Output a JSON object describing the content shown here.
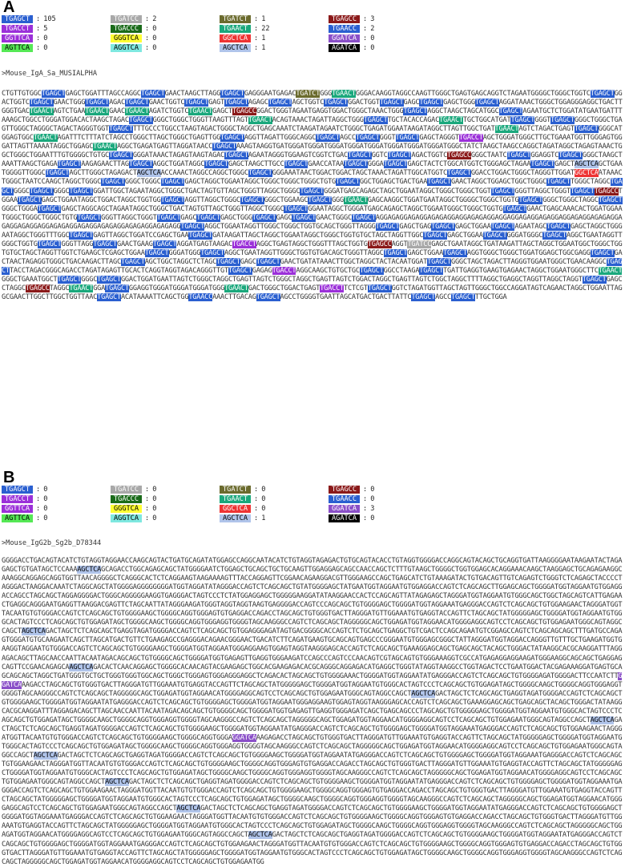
{
  "motif_styles": {
    "GAGCT": {
      "bg": "#2a5fd0",
      "fg": "#ffffff"
    },
    "GATCC": {
      "bg": "#a8a8a8",
      "fg": "#ffffff"
    },
    "GATCT": {
      "bg": "#6b6b2e",
      "fg": "#ffffff"
    },
    "TGAGCC": {
      "bg": "#8b1a1a",
      "fg": "#ffffff"
    },
    "TGAACT": {
      "bg": "#1aa87c",
      "fg": "#ffffff"
    },
    "GGTTCA": {
      "bg": "#9b30d9",
      "fg": "#ffffff"
    },
    "GGGTCA": {
      "bg": "#ffff33",
      "fg": "#000000"
    },
    "GGCTCA": {
      "bg": "#ee3333",
      "fg": "#ffffff"
    },
    "GGATCA": {
      "bg": "#8a4fc8",
      "fg": "#ffffff"
    },
    "AGTTCA": {
      "bg": "#55e855",
      "fg": "#000000"
    },
    "AGGTCA": {
      "bg": "#7fe8e0",
      "fg": "#000000"
    },
    "AGCTCA": {
      "bg": "#b0c4ea",
      "fg": "#000000"
    },
    "AGATCA": {
      "bg": "#000000",
      "fg": "#ffffff"
    },
    "TGACCT": {
      "bg": "#9b30d9",
      "fg": "#ffffff"
    },
    "TGACCC": {
      "bg": "#1a6b1a",
      "fg": "#ffffff"
    },
    "TGAACC": {
      "bg": "#2a5fd0",
      "fg": "#ffffff"
    },
    "TGAGCT": {
      "bg": "#2a5fd0",
      "fg": "#ffffff"
    }
  },
  "panel_a": {
    "letter": "A",
    "legend": [
      {
        "motif": "TGAGCT",
        "sep": ":",
        "count": "105",
        "bg": "#2a5fd0",
        "fg": "#ffffff"
      },
      {
        "motif": "TGATCC",
        "sep": ":",
        "count": "2",
        "bg": "#a8a8a8",
        "fg": "#ffffff"
      },
      {
        "motif": "TGATCT",
        "sep": ":",
        "count": "1",
        "bg": "#6b6b2e",
        "fg": "#ffffff"
      },
      {
        "motif": "TGAGCC",
        "sep": ":",
        "count": "3",
        "bg": "#8b1a1a",
        "fg": "#ffffff"
      },
      {
        "motif": "TGACCT",
        "sep": ":",
        "count": "5",
        "bg": "#9b30d9",
        "fg": "#ffffff"
      },
      {
        "motif": "TGACCC",
        "sep": ":",
        "count": "0",
        "bg": "#1a6b1a",
        "fg": "#ffffff"
      },
      {
        "motif": "TGAACT",
        "sep": ":",
        "count": "22",
        "bg": "#1aa87c",
        "fg": "#ffffff"
      },
      {
        "motif": "TGAACC",
        "sep": ":",
        "count": "2",
        "bg": "#2a5fd0",
        "fg": "#ffffff"
      },
      {
        "motif": "GGTTCA",
        "sep": ":",
        "count": "0",
        "bg": "#9b30d9",
        "fg": "#ffffff"
      },
      {
        "motif": "GGGTCA",
        "sep": ":",
        "count": "0",
        "bg": "#ffff33",
        "fg": "#000000"
      },
      {
        "motif": "GGCTCA",
        "sep": ":",
        "count": "1",
        "bg": "#ee3333",
        "fg": "#ffffff"
      },
      {
        "motif": "GGATCA",
        "sep": ":",
        "count": "0",
        "bg": "#8a4fc8",
        "fg": "#ffffff"
      },
      {
        "motif": "AGTTCA",
        "sep": ":",
        "count": "0",
        "bg": "#55e855",
        "fg": "#000000"
      },
      {
        "motif": "AGGTCA",
        "sep": ":",
        "count": "0",
        "bg": "#7fe8e0",
        "fg": "#000000"
      },
      {
        "motif": "AGCTCA",
        "sep": ":",
        "count": "1",
        "bg": "#b0c4ea",
        "fg": "#000000"
      },
      {
        "motif": "AGATCA",
        "sep": ":",
        "count": "0",
        "bg": "#000000",
        "fg": "#ffffff"
      }
    ],
    "title": ">Mouse_IgA_Sa_MUSIALPHA",
    "sequence": "CTGTTGTGGCTGAGCTGAGCTGGATTTAGCCAGGCTGAGCTGAACTAAGCTTAGGTGAGCTGAGGGAATGAGACTGATCTGGGTGAACTGGGACAAGGTAGGCCAAGTTGGGCTGAGTGAGCAGGTCTAGAATGGGGCTGGGCTGGTCTGAGCTGGACTGGTCTGAGCTGAACTGGGTGAGCTAGACTGAGCTGAACTGGTCTGAGCTGAGTTGAGCTAGAGCTGAGCTAGCTGGTCTGAGCTGGACTGGTTGAGCTGAGCTGAGCTGAGCTGGGTGAGCTAGGATAAACTGGGCTGGAGGGAGGCTGACTTGGGTGACTGAACTAGTCTGAATGAACTGAACTGAACTAGATCTGGTCTGAACTGAGCTTGAGCCGGACTGGGTAGAATGAGGTGGACTGGGCTAAACTGGGTGAGCTAGGCTAAGCTAGCATGGCTGAGCTAGAATGCTCTGGATATGAATGATTTAAAGCTGGCCTGGGATGGACACTAAGCTAGACTGAGCTGGGCTGGGCTGGGTTAAGTTTAGTTGAACTACAGTAAACTAGATTAGGCTGGGTGAGCTTGCTACACCAGACTGAACTTGCTGGCATGATTGAGCTGGGTTGAGCTGGGCTGGGCTGAGTTGGGCTAGGGCTAGACTAGGGTGGTTGAGCTTTTGCCCTGGCCTAAGTAGACTGGGCTAGGCTGAGCAAATCTAAGATAGAATCTGGGCTGAGATGGAATAAGATAGGCTTAGTTGGCTGATTGAACTAGTCTAGACTGAGTTGAGCTGGGCATGGAGTGGCTGAACTAGATTTCTTTATCTAGCCTGGGCTTAGCTGGGCTGAGTTGGTGAGCTAGGTTAGATTGGGCAGGCTGAGCTAGCCTGAGCTGGGTTGAGCTGAGCTAGGGTTGACCTAGCTGGGATGGGCTTGCTGAAATGGTTGGGAGTGGGATTAGTTAAAATAGGCTGGAGCTGAACTAGGCTGAGATGAGTTAGGATAACCTGAGCTAAAGTAAGGTGATGGGATGGGATGGGATGGGATGGGATGGGATGGGATGGGATGGGCTATCTAAGCTAAGCCAGGCTAGATAGGCTAGAGTAAACTGGCTGGGCTGGAATTTGTGGGGCTGTGCTGAGCTGGGATAAACTAGAGTAAGTAGACTGAGCTAGAATAGGGTGGAAGTCGGTCTGACTGAGCTGGTCTGAGCTAGACTGGTCTGAGCCGGGCTAATCTGAGCTGGAGGTCTGAGCTGGGCTAAGCTAAATTAAGCTGAGATGAGCTAAGAGAACTTAGTGAGCTAGGCTGGATAGGCTGAGCTGAGCTAAGCTTGCCTGAGCTGAACCATAATGAGCTGGGATGAGCTGAGCTACTCTGGCATGGTCTGGGAGCTAGAATGAGCTGAGCTAGCTCAGCTGAATGGGGTTGGGCTGAGCTAGCTTGGGCTAGAGACTAGCTCAACCAAACTAGGCCAGGCTGGGCTGAGCTGGGAAATAACTGGACTGGACTAGCTAAACTAGATTGGCATGGTCTGAGCTGGACCTGGACTGGGCTAGGGTTGGATGGCTCAATAAACTGGGCTAATCCAAGCTAGGCTGGGCTGAGCTGGGCTGGGCTGAGCTGAGCTAGGCTGGAATAGGCTGGGCTGGGCTGGGCTGTGTGAGCTGGCTGGAGCTGACTGAATGAGCTGAACTAGGCTGGAGCTGGCTGGGCTGAGCTTGGGCTAGGCTGAGCTGGGCTGAGCTGGGCTGAGCTGGATTGGCTAGAATAGGCTGGGCTGACTAGTGTTAGCTGGGTTAGGCTGGGCTGAGCTGGGATGAGCAGAGCTAGCTGGAATAGGCTGGGCTGGGCTGGTTGAGCTGGGTTAGGCTGGGTTGAGCTTGAGCCTGGAATGAGCTGAGCTGGAATAGGCTGGACTAGGCTGGTGGTGAGCTAGGTTAGGCTGGGCTGAGCTGGGCTGGAAGCTGAGCTGGGTGAACTGAGCAAGGCTGGATGAATAGGCTGGGGCTGGGCTGGTGTGAGCTGGGCTGGGCTAGGCTGAGCTGGGCTGGGATGAGCTGAGCTAGGCAGCTAGAATAGGCTGGGCTGACTAGTGTTAGCTGGGTTAGGCTGGGCTGAGCTGGAATAGGCTGGGATGAGCAGAGCTAGGCTGGAATGGGCTGGGCTGGTGTGAGCTGAACTGAGCAAACACTGGATGGAATGGGCTGGGCTGGGCTGTGTGAGCTGGGTTAGGCTGGGTTGAGCTGAGCTGAGCTGAGCTGGGTGAGCTGAGCTGAGCTGAACTGGGCTGAGCTAGGAGAGGAGAGGAGAGAGGAGGAGAGAGGAGGAGGAGAGGAGAGGAGGAGAGGAGAGAGGAGAGGAGAGGAGGAGAGAGGAGAGGAGAGAGGAGAGAGGAGAGAGGTGAGCTAGGCTGGAATAGGTTGGGCTGGGCTGGTGCAGCTGGGTTAGGGTGAGCTGAGCTGAGTGAGCTGAGCTGGAATGAGCTAGAATAGCTGAGCTGAGCTAGGCTGGGAATAGGCTGGGTTTGGCTGAGCTGAGTTAGGCTGGATCCGAGCTGAATGAGCTGATAAGATTAGCTAGGCTGGAATAGGCTGGGCTGGTGTGCTAGCTAGGTTGGCTGAGCTGAGCTGGAATGAGCTGGGATGGGCTGAGCTAGGCTGAATAGGTTGGGCTGGTGTGAGCTGGGTTAGGTGAGCTGAACTGAAGTGAGCTAGGATGAGTAAGACTGACCTAGGCTGAGTAGGCTGGGTTTAGCTGGTGTGAGCCAGGTTGATCCGAGCTGAATAGGCTGATAAGATTAGCTAGGCTGGAATGGCTGGGCTGGTGTGCTAGCTAGGTTGGTCTGAAGCTCGAGCTGGAATGAGCTGGGATGGGTGAGCTAGGCTGAATAGGTTGGGCTGGTGTGACAGCTGGGTTAGGCTGAGCTGAGCTGGAATGAGCTAGGTGGGCTGGGCTGGATGGAGCTGGCGAGGTGAGCTGACTAACTAGAGGTGGGCTGACAAGACTTAGCTGAGCTAGCTGGCTAGGCTCTAGCTGAGCTGAGCTGAGCTGAACTGATATAAACTTGGCTAGGCTACTACAATGGATTGAGCTGGGCTAGCTAGACTTAGGGTGGAATGGGCTGAACAAGGCTGAGCTTACCTAGACGGGCAGACCTAGATAGAGTTGCACTCAGGTAGGTAGACAGGGTTGTTGAGCTGAGAGTGACCTAGGCAAGCTGTGCTGCTGAGCTGGCCTAAGATGAGCTTGATTGAGGTGAAGTGAGAACTAGGCTGGAATGGGCTTCTGAACTGGGCTGAAATGGCTTGAGCTGGGCTGAGCTGGACTGGATGAATTAGTCTGGGCTAGGCTGAGTTAGTCTGGGCTAGGCTGAGTTAGTCTGGACTAGGCTGAGTTAGTCTGGCTAGGCTTTTAGGCTGAGGCTAGGTTAGGCTAGGTTGAGCTGAGCCTAGGCTGAGCCTAGGCTGAACTGGATGAGCTGGAGGTGGGATGGGATGGGATGGGTGAACTGACTGGGCTGGACTGAGTTGACCTTCTCGTTGAGCTGGTCTAGATGGTTAGCTAGTTGGGCTGGCCAGGATAGTCAGAACTAGGCTGGAATTAGGCGAACTTGGCTTGGCTGGTTAACTGAGCTACATAAAATTCAGCTGGTGAACCAAACTTGACAGTGAGCTAGCCTGGGGTGAATTAGCATGACTGACTTATTCTGAGCTAGCCTGAGCTTTGCTGGA"
  },
  "panel_b": {
    "letter": "B",
    "legend": [
      {
        "motif": "TGAGCT",
        "sep": ":",
        "count": "0",
        "bg": "#2a5fd0",
        "fg": "#ffffff"
      },
      {
        "motif": "TGATCC",
        "sep": ":",
        "count": "0",
        "bg": "#a8a8a8",
        "fg": "#ffffff"
      },
      {
        "motif": "TGATCT",
        "sep": ":",
        "count": "0",
        "bg": "#6b6b2e",
        "fg": "#ffffff"
      },
      {
        "motif": "TGAGCC",
        "sep": ":",
        "count": "0",
        "bg": "#8b1a1a",
        "fg": "#ffffff"
      },
      {
        "motif": "TGACCT",
        "sep": ":",
        "count": "0",
        "bg": "#9b30d9",
        "fg": "#ffffff"
      },
      {
        "motif": "TGACCC",
        "sep": ":",
        "count": "0",
        "bg": "#1a6b1a",
        "fg": "#ffffff"
      },
      {
        "motif": "TGAACT",
        "sep": ":",
        "count": "0",
        "bg": "#1aa87c",
        "fg": "#ffffff"
      },
      {
        "motif": "TGAACC",
        "sep": ":",
        "count": "0",
        "bg": "#2a5fd0",
        "fg": "#ffffff"
      },
      {
        "motif": "GGTTCA",
        "sep": ":",
        "count": "0",
        "bg": "#9b30d9",
        "fg": "#ffffff"
      },
      {
        "motif": "GGGTCA",
        "sep": ":",
        "count": "0",
        "bg": "#ffff33",
        "fg": "#000000"
      },
      {
        "motif": "GGCTCA",
        "sep": ":",
        "count": "0",
        "bg": "#ee3333",
        "fg": "#ffffff"
      },
      {
        "motif": "GGATCA",
        "sep": ":",
        "count": "3",
        "bg": "#8a4fc8",
        "fg": "#ffffff"
      },
      {
        "motif": "AGTTCA",
        "sep": ":",
        "count": "0",
        "bg": "#55e855",
        "fg": "#000000"
      },
      {
        "motif": "AGGTCA",
        "sep": ":",
        "count": "0",
        "bg": "#7fe8e0",
        "fg": "#000000"
      },
      {
        "motif": "AGCTCA",
        "sep": ":",
        "count": "1",
        "bg": "#b0c4ea",
        "fg": "#000000"
      },
      {
        "motif": "AGATCA",
        "sep": ":",
        "count": "0",
        "bg": "#000000",
        "fg": "#ffffff"
      }
    ],
    "title": ">Mouse_IgG2b_Sg2b_D78344",
    "sequence": "GGGGACCTGACAGTACATCTGTAGGTAGGAACCAAGCAGTACTGATGCAGATATGGAGCCAGGCAATACATCTGTAGGTAGAGACTGTGCAGTACACCTGTAGGTGGGGACCAGGCAGTACAGCTGCAGGTGATTAAGGGGAATAAGAATACTAGAGAGCTGTGATAGCTCCAAAAGCTCAGCAGACCTGGCAGAGCAGCTATGGGGAATCTGGAGCTGCAGCTGCTGCAAGTTGGAGGAGCAGCCAACCAGCTCTTTGTAAGCTGGGGCTGGTGGAGCACAGGAAACAAGCTAAGGAGCTGCAGAGAAGGCAAAGGCAGGAGCAGGTGGTTAACAGGGGCTCAGGGCACTCTCAGGAAGTAAGAAAAGTTTACCAGGAGTTCGGAACAGAAGGACGTTGGGAAGCCAGCTGAGCATCTGTAAAGATACTGTGACAGTTGTCAGAGTCTGGGTCTCAGAGCTACCCCTAGGGACTAAGGACAAATCTAGGCAGCTATGGGGAGGGGGGGGATGGTAGGATATAGGGACCAGTCTCAGCAGCTGTATGGGGAGCTATGAATGGTAGGAATGTGGAGGACCAGTCTCAGCAGCTTGGAGCAGCTGGGGATGGTAGGAATGTGGAGGACCAGCCTAGCAGCTAGGAGGGGACTGGGCAGGGGGAAGGTGAGGGACTAGTCCCTCTATGGAGGAGCTGGGGGAAGGATATAAGGAACCACTCCAGCAGTTATAGAGAGCTAGGGATGGTAGGAATGTGGGCAGCTGGCTAGCAGTCATTGAGAACTGAGGCAGGGAATGAGGTTAAGGACGAGTTCTAGCAATTATAGGGAAGATGGGTAGGTAGGTAAGTGAGGGGACCAGTCCCAGCAGCTGTGGGGAGCTGGGGATGGTAGGAAATGAGGGACCAGTCTCAGCAGCTGTGGAAGAACTAGGGATGGTTACAATGTGTGGGACCAGTCTCAGCAGCTGTGGGGAAGCTGGGGCAGGTGGGAGTGTGAGGACCAGACCTAGCAGCTGTGGGTGACTTAGGGATGTTGGAAATGTGAGGTACCAGTTCTAGCAGCTATGGGGGAGCTGGGGATGGTAGGAATGTGGGCACTAGTCCCTCAGCAGCTGTGGAGATAGCTGGGGCAAGCTGGGGCAGGTGGGAGGTGGGGTAGCAAGGGCCAGTCTCAGCAGCTAGGGGGCAGCTGGAGATGGTAGGAACATGGGGAGGCAGTCCTCAGCAGCTGTGGAGAATGGGCAGTAGGCCAGCTAGCTCAGACTAGCTCTCAGCAGCTGAGGTAGATGGGGACCAGTCTCAGCAGCTGTGGAGGGAGATAGTGACGGGGCACCAGTCTCTGCAGCTGAGGCTGTCGACTCCAGCAGAATGTCGGAGCCAGTCTCAGCAGCAGCTTTGATGCCAGAGTGGGATGTGCAAGAATCAGCTTAGCATGACTGTTCTGAAGAGCCGAGGGACAGAACGGGAACTGACATCTTCAGATGAAGTGCAGCAGTGAGCCCGGGAATGTGGGAGCGGGCTATTAGGGATGGTAGGACCAGGGTTGTTTGCTGAAGATGGTGAAGGTAGGAATGTGGGACCAGTCTCAGCAGCTGTGGGGAAGCTGGGGATGGTAGGAATGGGAGGAAGTGGAGTAGGTAAGGGAGCACCAGTCTCAGCAGCTGAAAGGAGCAGCTGAGCAGCTACAGCTGGGACTATAAGGCACGCAAGGATTTAGGAGACAGCTTAGCAACCAATTACAATAGACAGCAGCTGTGGGGCAGCTGGGGATGGTGAGAGTTGAGGTGGGAAGATCCAGCCCAGTCCCAACAGTCGTAGCAGTGTGGGAAAGGTCGCCATGAGAGGAGGAAGATGGGAAGGCAGCAGCTGAGGAGCAGTTCCGAACAGAGCAAGCTCAGACACTCAACAGGAGCTGGGGCACAACAGTACGAAGAGCTGGCACGAAGAGACACGCAGGGCAGGAGACATGAGGCTGGGTATAGGTAAGGCCTGGTAGACTCCTGAATGGACTACGAGAAAGGATGAGTGCAGCAGCAGCTAGGCTGATGGGTGCTGCTGGGTGGGTGGCAGCTGGGCTGGGAGTGGGAGGGAGGCTCAGACACTAGCAGCTGTGGGGAAACTGGGGATGGTAGGAATATGAGGGACCAGTCTCAGCAGCTGTGGGGAGATGGGGACTTCCAATCTTGGATCAAAGACCTAGCAGCTGTGGGTGACTTAGGGATGTTGGAAATGTGAGGTACCAGTTCTAGCAGCTATGGGGGAGCTGGGGATGGTAGGAATGTGGGCACTAGTCCCTCAGCAGCTGTGGAGATAGCTGGGGCAAGCTGGGGCAGGTGGGAGGTGGGGTAGCAAGGGCCAGTCTCAGCAGCTAGGGGGCAGCTGGAGATGGTAGGAACATGGGGAGGCAGTCCTCAGCAGCTGTGGAGAATGGGCAGTAGGCCAGCTAGCTCAGACTAGCTCTCAGCAGCTGAGGTAGATGGGGACCAGTCTCAGCAGCTGTGGGGAAGCTGGGGATGGTAGGAATATGAGGGACCAGTCTCAGCAGCTGTGGGGAGCTGGGGATGGTAGGAATGGGAGGAAGTGGAGTAGGTAAGGGAGCACCAGTCTCAGCAGCTGAAAGGAGCAGCTGAGCAGCTACAGCTGGGACTATAAGGCACGCAAGGATTTAGGAGACAGCTTAGCAACCAATTACAATAGACAGCAGCTGTGGGGCAGCTGGGGATGGTGAGAGTTGAGGTGGGAGATCAGCTGAGCAGCCCTAGCAGCTGTGGGGGAGCTGGGGATGGTAGGAATGTGGGCACTAGTCCCTCAGCAGCTGTGGAGATAGCTGGGGCAAGCTGGGGCAGGTGGGAGGTGGGGTAGCAAGGGCCAGTCTCAGCAGCTAGGGGGCAGCTGGAGATGGTAGGAACATGGGGAGGCAGTCCTCAGCAGCTGTGGAGAATGGGCAGTAGGCCAGCTAGCTCAGACTAGCTCTCAGCAGCTGAGGTAGATGGGGACCAGTCTCAGCAGCTGTGGGGAAGCTGGGGATGGTAGGAATATGAGGGACCAGTCTCAGCAGCTGTGGGGAGCTGGGGATGGTAGGAAATGAGGGACCAGTCTCAGCAGCTGTGGAAGAACTAGGGATGGTTACAATGTGTGGGACCAGTCTCAGCAGCTGTGGGGAAGCTGGGGCAGGTGGGAGGATCAAAGAGACCTAGCAGCTGTGGGTGACTTAGGGATGTTGGAAATGTGAGGTACCAGTTCTAGCAGCTATGGGGGAGCTGGGGATGGTAGGAATGTGGGCACTAGTCCCTCAGCAGCTGTGGAGATAGCTGGGGCAAGCTGGGGCAGGTGGGAGGTGGGGTAGCAAGGGCCAGTCTCAGCAGCTAGGGGGCAGCTGGAGATGGTAGGAACATGGGGAGGCAGTCCTCAGCAGCTGTGGAGAATGGGCAGTAGGCCAGCTAGCTCAGACTAGCTCTCAGCAGCTGAGGTAGATGGGGACCAGTCTCAGCAGCTGTGGGGAAGCTGGGGATGGTAGGAATATGAGGGACCAGTCTCAGCAGCTGTGGGGAGCTGGGGATGGTAGGAAATGAGGGACCAGTCTCAGCAGCTGTGGAAGAACTAGGGATGGTTACAATGTGTGGGACCAGTCTCAGCAGCTGTGGGGAAGCTGGGGCAGGTGGGAGTGTGAGGACCAGACCTAGCAGCTGTGGGTGACTTAGGGATGTTGGAAATGTGAGGTACCAGTTCTAGCAGCTATGGGGGAGCTGGGGATGGTAGGAATGTGGGCACTAGTCCCTCAGCAGCTGTGGAGATAGCTGGGGCAAGCTGGGGCAGGTGGGAGGTGGGGTAGCAAGGGCCAGTCTCAGCAGCTAGGGGGCAGCTGGAGATGGTAGGAACATGGGGAGGCAGTCCTCAGCAGCTGTGGAGAATGGGCAGTAGGCCAGCTAGCTCAGACTAGCTCTCAGCAGCTGAGGTAGATGGGGACCAGTCTCAGCAGCTGTGGGGAAGCTGGGGATGGTAGGAATATGAGGGACCAGTCTCAGCAGCTGTGGGGAGCTGGGGATGGTAGGAAATGAGGGACCAGTCTCAGCAGCTGTGGAAGAACTAGGGATGGTTACAATGTGTGGGACCAGTCTCAGCAGCTGTGGGGAAGCTGGGGCAGGTGGGAGTGTGAGGACCAGACCTAGCAGCTGTGGGTGACTTAGGGATGTTGGAAATGTGAGGTACCAGTTCTAGCAGCTATGGGGGAGCTGGGGATGGTAGGAATGTGGGCACTAGTCCCTCAGCAGCTGTGGAGATAGCTGGGGCAAGCTGGGGCAGGTGGGAGGTGGGGTAGCAAGGGCCAGTCTCAGCAGCTAGGGGGCAGCTGGAGATGGTAGGAACATGGGGAGGCAGTCCTCAGCAGCTGTGGAGAATGGGCAGTAGGCCAGCTAGCTCAGACTAGCTCTCAGCAGCTGAGGTAGATGGGGACCAGTCTCAGCAGCTGTGGGGAAGCTGGGGATGGTAGGAATATGAGGGACCAGTCTCAGCAGCTGTGGGGAGCTGGGGATGGTAGGAAATGAGGGACCAGTCTCAGCAGCTGTGGAAGAACTAGGGATGGTTACAATGTGTGGGACCAGTCTCAGCAGCTGTGGGGAAGCTGGGGCAGGTGGGAGTGTGAGGACCAGACCTAGCAGCTGTGGGTGACTTAGGGATGTTGGAAATGTGAGGTACCAGTTCTAGCAGCTATGGGGGAGCTGGGGATGGTAGGAATGTGGGCACTAGTCCCTCAGCAGCTGTGGAGATAGCTGGGGCAAGCTGGGGCAGGTGGGAGGTGGGGTAGCAAGGGCCAGTCTCAGCAGCTAGGGGGCAGCTGGAGATGGTAGGAACATGGGGAGGCAGTCCTCAGCAGCTGTGGAGAATGGGCAGTAGGCCAGCTAGCTCAGACTAGCTCTCAGCAGCTGAGGTAGATGGGGACCAGTCTCAGCAGCTGTGGGGAAGCTGGGGATGGTAGGAATATGAGGGACCAGTCTCAGCAGCTGTGGGGAGCTGGGGATGGTAGGAAATGAGGGACCAGTCTCAGCAGCTGTGGAAGAACTAGGGATGGTTACAATGTGTGGGACCAGTCTCAGCAGCTGTGGGGAAGCTGGGGCAGGTGGGAGTGTGAGGACCAGACCTAGCAGCTGTGGGTGACTTAGGGATGTTGGAAATGTGAGGTACCAGTTCTAGCAGCTATGGGGGAGCTGGGGATGGTAGGAATGTGGGCACTAGTCCCTCAGCAGCTGTGGAGATAGCTGGGGCAAGCTGGGGCAGGTGGGAGGTGGGGTAGCAAGGGCCAGTCTCAGCAGCTAGGGGGCAGCTGGAGATGGTAGGAACATGGGGAGGCAGTCCTCAGCAGCTGTGGAGAATGG"
  }
}
